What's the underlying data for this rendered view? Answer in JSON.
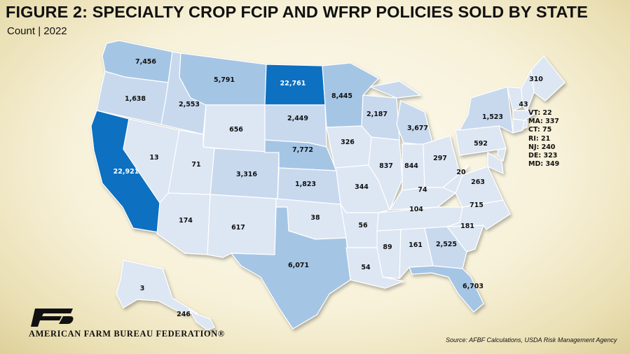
{
  "title": "FIGURE 2: SPECIALTY CROP FCIP AND WFRP POLICIES SOLD BY STATE",
  "subtitle": "Count | 2022",
  "source": "Source: AFBF Calculations, USDA Risk Management Agency",
  "logo_text": "AMERICAN FARM BUREAU FEDERATION®",
  "colors": {
    "lightest": "#dde6f3",
    "light": "#c8d9ee",
    "medium": "#a5c5e5",
    "dark": "#0c6fc1",
    "border": "#ffffff",
    "logo": "#111111"
  },
  "chart_data": {
    "type": "choropleth",
    "states": [
      {
        "state": "WA",
        "value": "7,456"
      },
      {
        "state": "OR",
        "value": "1,638"
      },
      {
        "state": "CA",
        "value": "22,921"
      },
      {
        "state": "ID",
        "value": "2,553"
      },
      {
        "state": "NV",
        "value": "13"
      },
      {
        "state": "MT",
        "value": "5,791"
      },
      {
        "state": "WY",
        "value": "656"
      },
      {
        "state": "UT",
        "value": "71"
      },
      {
        "state": "AZ",
        "value": "174"
      },
      {
        "state": "CO",
        "value": "3,316"
      },
      {
        "state": "NM",
        "value": "617"
      },
      {
        "state": "ND",
        "value": "22,761"
      },
      {
        "state": "SD",
        "value": "2,449"
      },
      {
        "state": "NE",
        "value": "7,772"
      },
      {
        "state": "KS",
        "value": "1,823"
      },
      {
        "state": "OK",
        "value": "38"
      },
      {
        "state": "TX",
        "value": "6,071"
      },
      {
        "state": "MN",
        "value": "8,445"
      },
      {
        "state": "IA",
        "value": "326"
      },
      {
        "state": "MO",
        "value": "344"
      },
      {
        "state": "AR",
        "value": "56"
      },
      {
        "state": "LA",
        "value": "54"
      },
      {
        "state": "WI",
        "value": "2,187"
      },
      {
        "state": "IL",
        "value": "837"
      },
      {
        "state": "MI",
        "value": "3,677"
      },
      {
        "state": "IN",
        "value": "844"
      },
      {
        "state": "OH",
        "value": "297"
      },
      {
        "state": "KY",
        "value": "74"
      },
      {
        "state": "TN",
        "value": "104"
      },
      {
        "state": "MS",
        "value": "89"
      },
      {
        "state": "AL",
        "value": "161"
      },
      {
        "state": "GA",
        "value": "2,525"
      },
      {
        "state": "FL",
        "value": "6,703"
      },
      {
        "state": "SC",
        "value": "181"
      },
      {
        "state": "NC",
        "value": "715"
      },
      {
        "state": "VA",
        "value": "263"
      },
      {
        "state": "WV",
        "value": "20"
      },
      {
        "state": "PA",
        "value": "592"
      },
      {
        "state": "NY",
        "value": "1,523"
      },
      {
        "state": "ME",
        "value": "310"
      },
      {
        "state": "NH",
        "value": "43"
      },
      {
        "state": "AK",
        "value": "3"
      },
      {
        "state": "HI",
        "value": "246"
      }
    ],
    "small_states": [
      {
        "label": "VT: 22"
      },
      {
        "label": "MA: 337"
      },
      {
        "label": "CT: 75"
      },
      {
        "label": "RI: 21"
      },
      {
        "label": "NJ: 240"
      },
      {
        "label": "DE: 323"
      },
      {
        "label": "MD: 349"
      }
    ]
  }
}
